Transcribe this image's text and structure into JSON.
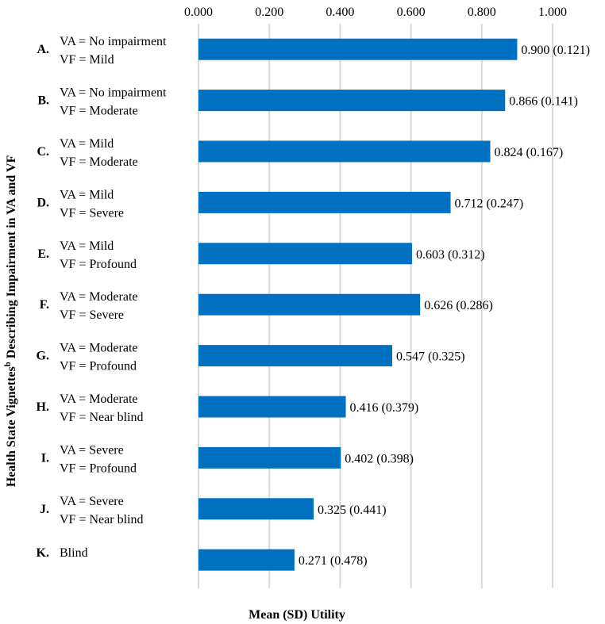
{
  "chart_data": {
    "type": "bar",
    "orientation": "horizontal",
    "title": "",
    "xlabel": "Mean (SD) Utility",
    "ylabel_main": "Health State Vignettes",
    "ylabel_sup": "b",
    "ylabel_rest": " Describing Impairment in VA and VF",
    "xlim": [
      0,
      1
    ],
    "xticks": [
      0,
      0.2,
      0.4,
      0.6,
      0.8,
      1.0
    ],
    "xtick_labels": [
      "0.000",
      "0.200",
      "0.400",
      "0.600",
      "0.800",
      "1.000"
    ],
    "grid": true,
    "bar_color": "#0070C0",
    "grid_color": "#D9D9D9",
    "categories": [
      {
        "letter": "A.",
        "line1": "VA = No impairment",
        "line2": "VF = Mild"
      },
      {
        "letter": "B.",
        "line1": "VA = No impairment",
        "line2": "VF = Moderate"
      },
      {
        "letter": "C.",
        "line1": "VA = Mild",
        "line2": "VF = Moderate"
      },
      {
        "letter": "D.",
        "line1": "VA = Mild",
        "line2": "VF = Severe"
      },
      {
        "letter": "E.",
        "line1": "VA = Mild",
        "line2": "VF = Profound"
      },
      {
        "letter": "F.",
        "line1": "VA = Moderate",
        "line2": "VF = Severe"
      },
      {
        "letter": "G.",
        "line1": "VA = Moderate",
        "line2": "VF = Profound"
      },
      {
        "letter": "H.",
        "line1": "VA = Moderate",
        "line2": "VF = Near blind"
      },
      {
        "letter": "I.",
        "line1": "VA = Severe",
        "line2": "VF = Profound"
      },
      {
        "letter": "J.",
        "line1": "VA = Severe",
        "line2": "VF = Near blind"
      },
      {
        "letter": "K.",
        "line1": "Blind",
        "line2": ""
      }
    ],
    "values": [
      0.9,
      0.866,
      0.824,
      0.712,
      0.603,
      0.626,
      0.547,
      0.416,
      0.402,
      0.325,
      0.271
    ],
    "sd": [
      0.121,
      0.141,
      0.167,
      0.247,
      0.312,
      0.286,
      0.325,
      0.379,
      0.398,
      0.441,
      0.478
    ],
    "data_labels": [
      "0.900 (0.121)",
      "0.866 (0.141)",
      "0.824 (0.167)",
      "0.712 (0.247)",
      "0.603 (0.312)",
      "0.626 (0.286)",
      "0.547 (0.325)",
      "0.416 (0.379)",
      "0.402 (0.398)",
      "0.325 (0.441)",
      "0.271 (0.478)"
    ]
  }
}
